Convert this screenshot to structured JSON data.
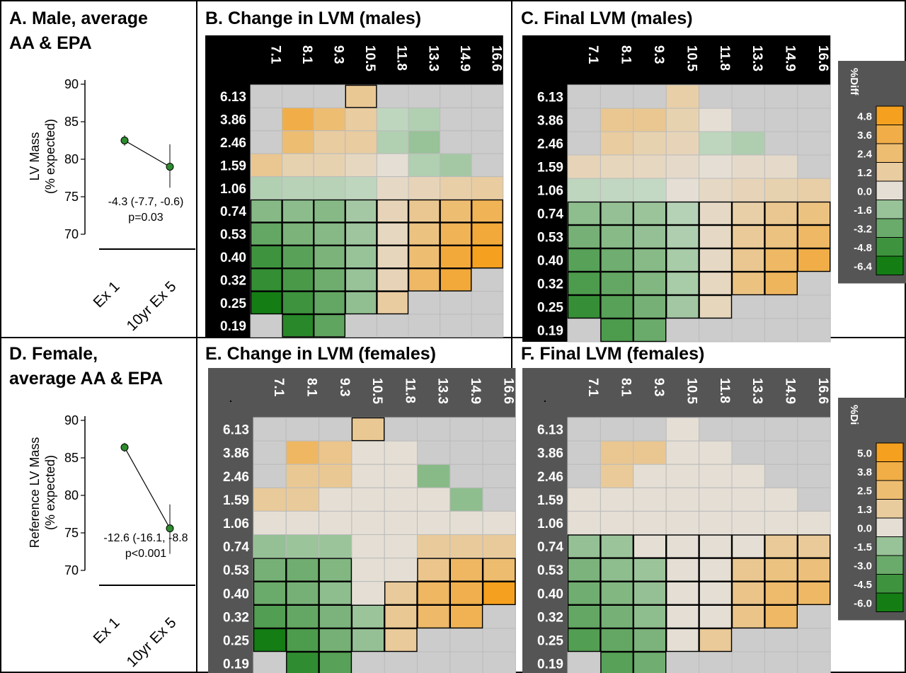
{
  "colors": {
    "panel_border": "#000000",
    "dark_bg": "#000000",
    "gray_bg": "#555555",
    "cell_neutral": "#cccccc",
    "grid_line": "#bbbbbb",
    "point": "#2e8b2e"
  },
  "chart_data": [
    {
      "type": "scatter",
      "panel": "A",
      "title": "A. Male, average\nAA & EPA",
      "ylabel": "LV Mass\n(% expected)",
      "ylim": [
        70,
        90
      ],
      "yticks": [
        "90",
        "85",
        "80",
        "75",
        "70"
      ],
      "categories": [
        "Ex 1",
        "10yr Ex 5"
      ],
      "values": [
        82.5,
        79.0
      ],
      "error_low": [
        81.8,
        76.2
      ],
      "error_high": [
        83.2,
        82.0
      ],
      "annotation": [
        "-4.3 (-7.7, -0.6)",
        "p=0.03"
      ]
    },
    {
      "type": "scatter",
      "panel": "D",
      "title": "D. Female,\naverage AA & EPA",
      "ylabel": "Reference LV Mass\n(% expected)",
      "ylim": [
        70,
        90
      ],
      "yticks": [
        "90",
        "85",
        "80",
        "75",
        "70"
      ],
      "categories": [
        "Ex 1",
        "10yr Ex 5"
      ],
      "values": [
        86.4,
        75.6
      ],
      "error_low": [
        85.8,
        72.2
      ],
      "error_high": [
        87.0,
        78.8
      ],
      "annotation": [
        "-12.6 (-16.1, -8.8",
        "p<0.001"
      ]
    },
    {
      "type": "heatmap",
      "panel": "B",
      "title": "B. Change in LVM (males)",
      "x": [
        "7.1",
        "8.1",
        "9.3",
        "10.5",
        "11.8",
        "13.3",
        "14.9",
        "16.6"
      ],
      "y": [
        "6.13",
        "3.86",
        "2.46",
        "1.59",
        "1.06",
        "0.74",
        "0.53",
        "0.40",
        "0.32",
        "0.25",
        "0.19"
      ],
      "values": [
        [
          null,
          null,
          null,
          1.5,
          null,
          null,
          null,
          null
        ],
        [
          null,
          3.6,
          2.4,
          1.2,
          -0.4,
          -0.8,
          null,
          null
        ],
        [
          null,
          2.4,
          1.2,
          1.2,
          -0.8,
          -1.6,
          null,
          null
        ],
        [
          1.6,
          0.8,
          0.8,
          0.4,
          0.0,
          -0.8,
          -1.2,
          null
        ],
        [
          -0.8,
          -0.6,
          -0.6,
          -0.4,
          0.3,
          0.6,
          1.0,
          1.2
        ],
        [
          -2.2,
          -2.0,
          -2.2,
          -1.2,
          0.6,
          1.6,
          2.4,
          3.2
        ],
        [
          -3.4,
          -2.6,
          -2.2,
          -1.4,
          0.4,
          2.0,
          3.2,
          4.0
        ],
        [
          -4.8,
          -3.8,
          -2.6,
          -1.6,
          0.5,
          2.4,
          4.0,
          4.8
        ],
        [
          -5.2,
          -4.4,
          -3.0,
          -1.6,
          0.6,
          2.8,
          4.0,
          null
        ],
        [
          -6.4,
          -4.8,
          -3.4,
          -1.8,
          1.2,
          null,
          null,
          null
        ],
        [
          null,
          -5.6,
          -3.6,
          null,
          null,
          null,
          null,
          null
        ]
      ],
      "boxed": [
        [
          0,
          0,
          0,
          1,
          0,
          0,
          0,
          0
        ],
        [
          0,
          0,
          0,
          0,
          0,
          0,
          0,
          0
        ],
        [
          0,
          0,
          0,
          0,
          0,
          0,
          0,
          0
        ],
        [
          0,
          0,
          0,
          0,
          0,
          0,
          0,
          0
        ],
        [
          0,
          0,
          0,
          0,
          0,
          0,
          0,
          0
        ],
        [
          1,
          1,
          1,
          1,
          1,
          1,
          1,
          1
        ],
        [
          1,
          1,
          1,
          1,
          1,
          1,
          1,
          1
        ],
        [
          1,
          1,
          1,
          1,
          1,
          1,
          1,
          1
        ],
        [
          1,
          1,
          1,
          1,
          1,
          1,
          1,
          0
        ],
        [
          1,
          1,
          1,
          1,
          1,
          0,
          0,
          0
        ],
        [
          0,
          1,
          1,
          0,
          0,
          0,
          0,
          0
        ]
      ],
      "label_bg": "dark",
      "legend": null
    },
    {
      "type": "heatmap",
      "panel": "C",
      "title": "C. Final LVM (males)",
      "x": [
        "7.1",
        "8.1",
        "9.3",
        "10.5",
        "11.8",
        "13.3",
        "14.9",
        "16.6"
      ],
      "y": [
        "6.13",
        "3.86",
        "2.46",
        "1.59",
        "1.06",
        "0.74",
        "0.53",
        "0.40",
        "0.32",
        "0.25",
        "0.19"
      ],
      "values": [
        [
          null,
          null,
          null,
          1.0,
          null,
          null,
          null,
          null
        ],
        [
          null,
          1.6,
          1.6,
          0.8,
          0.0,
          null,
          null,
          null
        ],
        [
          null,
          1.2,
          0.8,
          0.6,
          -0.4,
          -0.8,
          null,
          null
        ],
        [
          0.6,
          0.5,
          0.4,
          0.2,
          0.0,
          0.2,
          0.2,
          null
        ],
        [
          -0.4,
          -0.3,
          -0.2,
          0.0,
          0.3,
          0.6,
          0.8,
          1.0
        ],
        [
          -1.8,
          -1.6,
          -1.4,
          -0.6,
          0.3,
          1.0,
          1.6,
          2.0
        ],
        [
          -2.6,
          -2.0,
          -1.6,
          -0.8,
          0.3,
          1.4,
          2.0,
          2.8
        ],
        [
          -3.6,
          -2.8,
          -2.0,
          -1.0,
          0.3,
          1.6,
          2.8,
          3.6
        ],
        [
          -4.0,
          -3.2,
          -2.2,
          -1.0,
          0.4,
          2.0,
          3.0,
          null
        ],
        [
          -4.8,
          -3.6,
          -2.6,
          -1.2,
          0.5,
          null,
          null,
          null
        ],
        [
          null,
          -4.0,
          -3.0,
          null,
          null,
          null,
          null,
          null
        ]
      ],
      "boxed": [
        [
          0,
          0,
          0,
          0,
          0,
          0,
          0,
          0
        ],
        [
          0,
          0,
          0,
          0,
          0,
          0,
          0,
          0
        ],
        [
          0,
          0,
          0,
          0,
          0,
          0,
          0,
          0
        ],
        [
          0,
          0,
          0,
          0,
          0,
          0,
          0,
          0
        ],
        [
          0,
          0,
          0,
          0,
          0,
          0,
          0,
          0
        ],
        [
          1,
          1,
          1,
          1,
          1,
          1,
          1,
          1
        ],
        [
          1,
          1,
          1,
          1,
          1,
          1,
          1,
          1
        ],
        [
          1,
          1,
          1,
          1,
          1,
          1,
          1,
          1
        ],
        [
          1,
          1,
          1,
          1,
          1,
          1,
          1,
          0
        ],
        [
          1,
          1,
          1,
          1,
          1,
          0,
          0,
          0
        ],
        [
          0,
          1,
          1,
          0,
          0,
          0,
          0,
          0
        ]
      ],
      "label_bg": "dark",
      "legend": {
        "title": "%Diff",
        "labels": [
          "4.8",
          "3.6",
          "2.4",
          "1.2",
          "0.0",
          "-1.6",
          "-3.2",
          "-4.8",
          "-6.4"
        ],
        "values": [
          4.8,
          3.6,
          2.4,
          1.2,
          0.0,
          -1.6,
          -3.2,
          -4.8,
          -6.4
        ]
      }
    },
    {
      "type": "heatmap",
      "panel": "E",
      "title": "E. Change in LVM (females)",
      "corner_mark": ".",
      "x": [
        "7.1",
        "8.1",
        "9.3",
        "10.5",
        "11.8",
        "13.3",
        "14.9",
        "16.6"
      ],
      "y": [
        "6.13",
        "3.86",
        "2.46",
        "1.59",
        "1.06",
        "0.74",
        "0.53",
        "0.40",
        "0.32",
        "0.25",
        "0.19"
      ],
      "values": [
        [
          null,
          null,
          null,
          1.6,
          null,
          null,
          null,
          null
        ],
        [
          null,
          3.0,
          1.8,
          0.0,
          0.0,
          null,
          null,
          null
        ],
        [
          null,
          1.6,
          1.6,
          0.0,
          0.0,
          -2.0,
          null,
          null
        ],
        [
          1.4,
          1.4,
          0.0,
          0.0,
          0.0,
          0.0,
          -1.8,
          null
        ],
        [
          0.0,
          0.0,
          0.0,
          0.0,
          0.0,
          0.0,
          0.0,
          0.0
        ],
        [
          -1.6,
          -1.4,
          -1.4,
          0.0,
          0.0,
          1.4,
          1.4,
          1.4
        ],
        [
          -2.6,
          -2.8,
          -2.2,
          0.0,
          0.0,
          1.8,
          3.0,
          2.6
        ],
        [
          -3.0,
          -2.6,
          -1.8,
          0.0,
          1.4,
          3.0,
          3.6,
          5.0
        ],
        [
          -3.8,
          -3.2,
          -2.4,
          -1.4,
          1.6,
          2.8,
          3.4,
          null
        ],
        [
          -6.0,
          -4.0,
          -2.6,
          -1.6,
          1.4,
          null,
          null,
          null
        ],
        [
          null,
          -5.0,
          -3.6,
          null,
          null,
          null,
          null,
          null
        ]
      ],
      "boxed": [
        [
          0,
          0,
          0,
          1,
          0,
          0,
          0,
          0
        ],
        [
          0,
          0,
          0,
          0,
          0,
          0,
          0,
          0
        ],
        [
          0,
          0,
          0,
          0,
          0,
          0,
          0,
          0
        ],
        [
          0,
          0,
          0,
          0,
          0,
          0,
          0,
          0
        ],
        [
          0,
          0,
          0,
          0,
          0,
          0,
          0,
          0
        ],
        [
          0,
          0,
          0,
          0,
          0,
          0,
          0,
          0
        ],
        [
          1,
          1,
          1,
          0,
          0,
          1,
          1,
          1
        ],
        [
          1,
          1,
          1,
          0,
          1,
          1,
          1,
          1
        ],
        [
          1,
          1,
          1,
          1,
          1,
          1,
          1,
          0
        ],
        [
          1,
          1,
          1,
          1,
          1,
          0,
          0,
          0
        ],
        [
          0,
          1,
          1,
          0,
          0,
          0,
          0,
          0
        ]
      ],
      "label_bg": "gray",
      "legend": null
    },
    {
      "type": "heatmap",
      "panel": "F",
      "title": "F. Final LVM (females)",
      "corner_mark": ".",
      "x": [
        "7.1",
        "8.1",
        "9.3",
        "10.5",
        "11.8",
        "13.3",
        "14.9",
        "16.6"
      ],
      "y": [
        "6.13",
        "3.86",
        "2.46",
        "1.59",
        "1.06",
        "0.74",
        "0.53",
        "0.40",
        "0.32",
        "0.25",
        "0.19"
      ],
      "values": [
        [
          null,
          null,
          null,
          0.0,
          null,
          null,
          null,
          null
        ],
        [
          null,
          1.6,
          1.6,
          0.0,
          0.0,
          null,
          null,
          null
        ],
        [
          null,
          1.4,
          0.0,
          0.0,
          0.0,
          0.0,
          null,
          null
        ],
        [
          0.0,
          0.0,
          0.0,
          0.0,
          0.0,
          0.0,
          0.0,
          null
        ],
        [
          0.0,
          0.0,
          0.0,
          0.0,
          0.0,
          0.0,
          0.0,
          0.0
        ],
        [
          -1.6,
          -1.4,
          0.0,
          0.0,
          0.0,
          0.0,
          1.4,
          1.4
        ],
        [
          -2.4,
          -1.8,
          -1.4,
          0.0,
          0.0,
          1.6,
          2.0,
          2.2
        ],
        [
          -2.8,
          -2.2,
          -1.6,
          0.0,
          0.0,
          1.8,
          2.6,
          2.8
        ],
        [
          -3.2,
          -2.6,
          -1.8,
          0.0,
          0.0,
          1.8,
          2.8,
          null
        ],
        [
          -3.8,
          -3.2,
          -2.4,
          0.0,
          1.4,
          null,
          null,
          null
        ],
        [
          null,
          -3.6,
          -2.8,
          null,
          null,
          null,
          null,
          null
        ]
      ],
      "boxed": [
        [
          0,
          0,
          0,
          0,
          0,
          0,
          0,
          0
        ],
        [
          0,
          0,
          0,
          0,
          0,
          0,
          0,
          0
        ],
        [
          0,
          0,
          0,
          0,
          0,
          0,
          0,
          0
        ],
        [
          0,
          0,
          0,
          0,
          0,
          0,
          0,
          0
        ],
        [
          0,
          0,
          0,
          0,
          0,
          0,
          0,
          0
        ],
        [
          1,
          1,
          1,
          1,
          1,
          1,
          1,
          1
        ],
        [
          1,
          1,
          1,
          1,
          1,
          1,
          1,
          1
        ],
        [
          1,
          1,
          1,
          1,
          1,
          1,
          1,
          1
        ],
        [
          1,
          1,
          1,
          1,
          1,
          1,
          1,
          0
        ],
        [
          1,
          1,
          1,
          1,
          1,
          0,
          0,
          0
        ],
        [
          0,
          1,
          1,
          0,
          0,
          0,
          0,
          0
        ]
      ],
      "label_bg": "gray",
      "legend": {
        "title": "%Di",
        "labels": [
          "5.0",
          "3.8",
          "2.5",
          "1.3",
          "0.0",
          "-1.5",
          "-3.0",
          "-4.5",
          "-6.0"
        ],
        "values": [
          5.0,
          3.8,
          2.5,
          1.3,
          0.0,
          -1.5,
          -3.0,
          -4.5,
          -6.0
        ]
      }
    }
  ]
}
